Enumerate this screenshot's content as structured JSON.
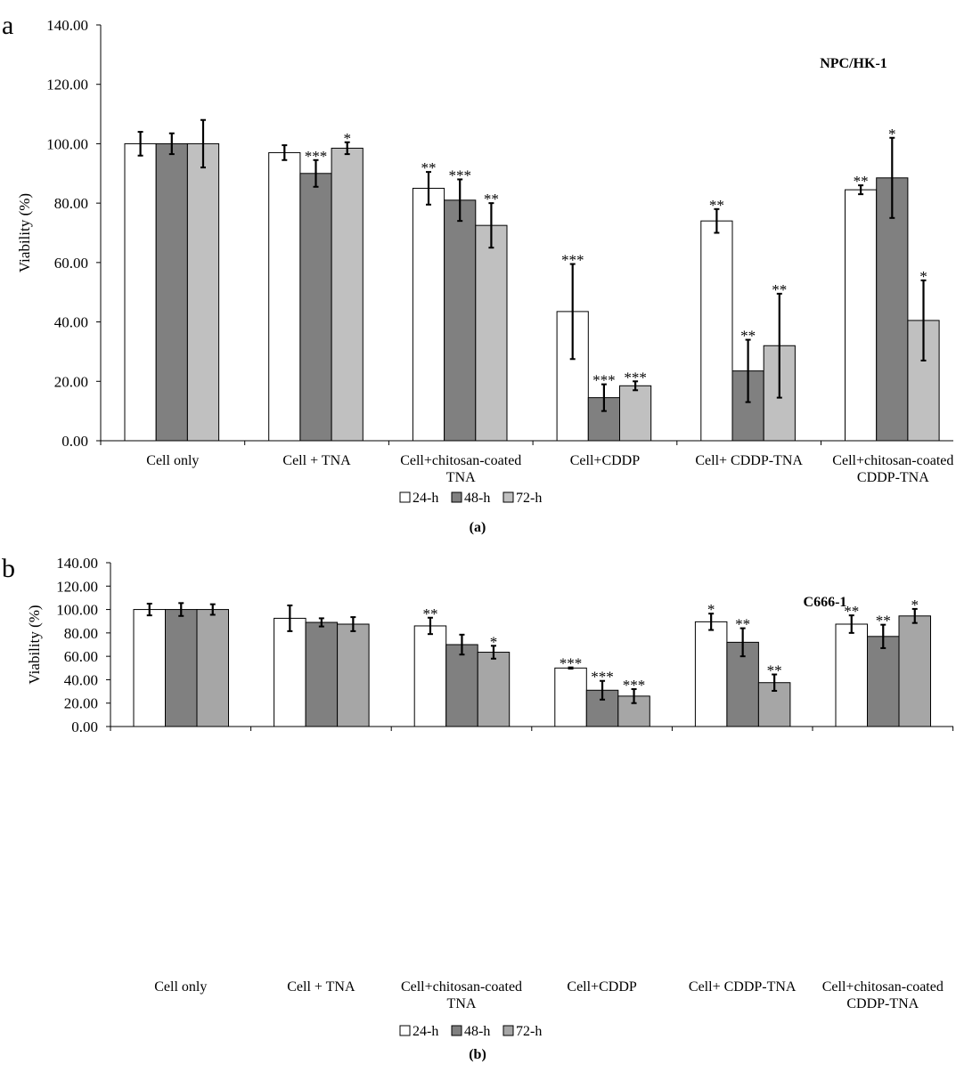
{
  "colors": {
    "s24": "#ffffff",
    "s48": "#808080",
    "s72": "#c0c0c0",
    "s72b": "#a6a6a6"
  },
  "chart_data": [
    {
      "type": "bar",
      "panel_letter": "a",
      "panel_caption": "(a)",
      "title": "NPC/HK-1",
      "xlabel": "",
      "ylabel": "Viability (%)",
      "ylim": [
        0,
        140
      ],
      "yticks": [
        "0.00",
        "20.00",
        "40.00",
        "60.00",
        "80.00",
        "100.00",
        "120.00",
        "140.00"
      ],
      "categories": [
        "Cell only",
        "Cell + TNA",
        "Cell+chitosan-coated\nTNA",
        "Cell+CDDP",
        "Cell+ CDDP-TNA",
        "Cell+chitosan-coated\nCDDP-TNA"
      ],
      "legend_position": "bottom",
      "series": [
        {
          "name": "24-h",
          "color_key": "s24",
          "values": [
            100,
            97,
            85,
            43.5,
            74,
            84.5
          ],
          "errors": [
            4,
            2.5,
            5.5,
            16,
            4,
            1.5
          ],
          "significance": [
            "",
            "",
            "**",
            "***",
            "**",
            "**"
          ]
        },
        {
          "name": "48-h",
          "color_key": "s48",
          "values": [
            100,
            90,
            81,
            14.5,
            23.5,
            88.5
          ],
          "errors": [
            3.5,
            4.5,
            7,
            4.5,
            10.5,
            13.5
          ],
          "significance": [
            "",
            "***",
            "***",
            "***",
            "**",
            "*"
          ]
        },
        {
          "name": "72-h",
          "color_key": "s72",
          "values": [
            100,
            98.5,
            72.5,
            18.5,
            32,
            40.5
          ],
          "errors": [
            8,
            2,
            7.5,
            1.5,
            17.5,
            13.5
          ],
          "significance": [
            "",
            "*",
            "**",
            "***",
            "**",
            "*"
          ]
        }
      ]
    },
    {
      "type": "bar",
      "panel_letter": "b",
      "panel_caption": "(b)",
      "title": "C666-1",
      "xlabel": "",
      "ylabel": "Viability (%)",
      "ylim": [
        0,
        140
      ],
      "yticks": [
        "0.00",
        "20.00",
        "40.00",
        "60.00",
        "80.00",
        "100.00",
        "120.00",
        "140.00"
      ],
      "categories": [
        "Cell only",
        "Cell + TNA",
        "Cell+chitosan-coated\nTNA",
        "Cell+CDDP",
        "Cell+ CDDP-TNA",
        "Cell+chitosan-coated\nCDDP-TNA"
      ],
      "legend_position": "bottom",
      "series": [
        {
          "name": "24-h",
          "color_key": "s24",
          "values": [
            100,
            92.5,
            86,
            50,
            89.5,
            87.5
          ],
          "errors": [
            5,
            11,
            7,
            0.5,
            7,
            7.5
          ],
          "significance": [
            "",
            "",
            "**",
            "***",
            "*",
            "**"
          ]
        },
        {
          "name": "48-h",
          "color_key": "s48",
          "values": [
            100,
            89,
            70,
            31,
            72,
            77
          ],
          "errors": [
            5.5,
            3.5,
            8.5,
            8,
            12,
            10
          ],
          "significance": [
            "",
            "",
            "",
            "***",
            "**",
            "**"
          ]
        },
        {
          "name": "72-h",
          "color_key": "s72b",
          "values": [
            100,
            87.5,
            63.5,
            26,
            37.5,
            94.5
          ],
          "errors": [
            4.5,
            6,
            5.5,
            6,
            7,
            6
          ],
          "significance": [
            "",
            "",
            "*",
            "***",
            "**",
            "*"
          ]
        }
      ]
    }
  ]
}
